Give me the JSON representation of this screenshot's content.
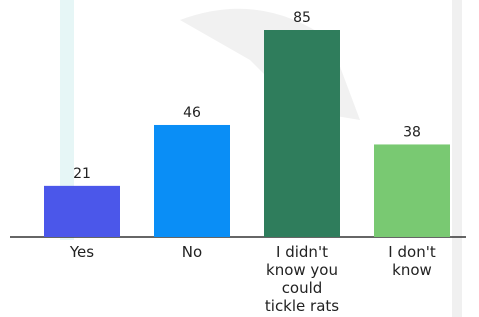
{
  "chart_data": {
    "type": "bar",
    "categories": [
      "Yes",
      "No",
      "I didn't know you could tickle rats",
      "I don't know"
    ],
    "series": [
      {
        "values": [
          21,
          46,
          85,
          38
        ],
        "colors": [
          "#4b57ea",
          "#0a8ef6",
          "#2f7d5c",
          "#79c972"
        ]
      }
    ]
  }
}
